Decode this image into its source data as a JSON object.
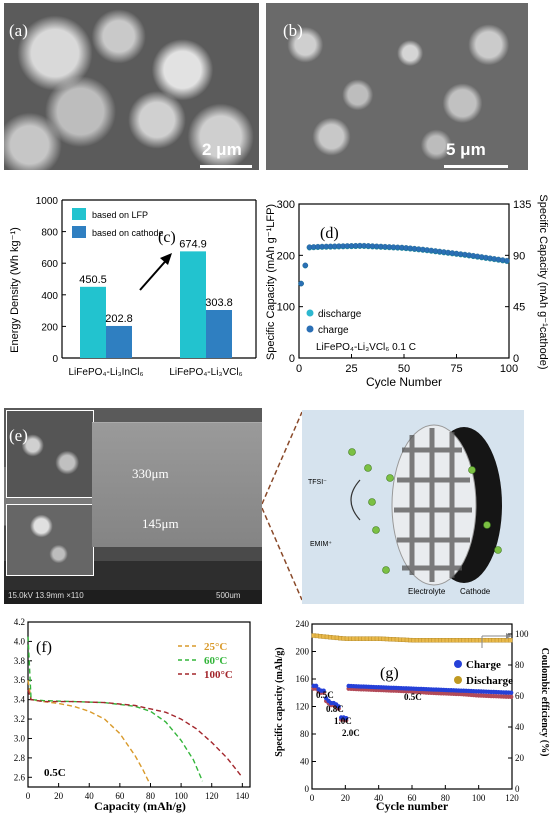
{
  "panel_a": {
    "letter": "(a)",
    "scale": "2 μm"
  },
  "panel_b": {
    "letter": "(b)",
    "scale": "5 μm"
  },
  "panel_c": {
    "letter": "(c)",
    "legend": [
      "based on LFP",
      "based on cathode"
    ],
    "ylabel": "Energy Density (Wh kg⁻¹)",
    "yticks": [
      "0",
      "200",
      "400",
      "600",
      "800",
      "1000"
    ],
    "categories": [
      "LiFePO₄-Li₃InCl₆",
      "LiFePO₄-Li₃VCl₆"
    ],
    "colors": {
      "lfp": "#22c3cf",
      "cathode": "#2f7fc1"
    }
  },
  "panel_d": {
    "letter": "(d)",
    "ylabel_left": "Specific Capacity (mAh g⁻¹LFP)",
    "ylabel_right": "Specific Capacity (mAh g⁻¹cathode)",
    "xlabel": "Cycle Number",
    "yticks_left": [
      "0",
      "100",
      "200",
      "300"
    ],
    "yticks_right": [
      "0",
      "45",
      "90",
      "135"
    ],
    "xticks": [
      "0",
      "25",
      "50",
      "75",
      "100"
    ],
    "legend": [
      "discharge",
      "charge"
    ],
    "annotation": "LiFePO₄-Li₃VCl₆  0.1 C"
  },
  "panel_e": {
    "letter": "(e)",
    "thickness_top": "330μm",
    "thickness_bottom": "145μm",
    "sem_footer": "15.0kV 13.9mm ×110",
    "sem_scale": "500um",
    "schematic": {
      "anion": "TFSI⁻",
      "cation": "EMIM⁺",
      "electrolyte": "Electrolyte",
      "cathode": "Cathode"
    }
  },
  "panel_f": {
    "letter": "(f)",
    "xlabel": "Capacity (mAh/g)",
    "xticks": [
      "0",
      "20",
      "40",
      "60",
      "80",
      "100",
      "120",
      "140"
    ],
    "yticks": [
      "2.6",
      "2.8",
      "3.0",
      "3.2",
      "3.4",
      "3.6",
      "3.8",
      "4.0",
      "4.2"
    ],
    "legend": [
      {
        "name": "25°C",
        "color": "#d99a2b"
      },
      {
        "name": "60°C",
        "color": "#33b53a"
      },
      {
        "name": "100°C",
        "color": "#a3262c"
      }
    ],
    "rate": "0.5C"
  },
  "panel_g": {
    "letter": "(g)",
    "xlabel": "Cycle number",
    "ylabel_left": "Specific capacity (mAh/g)",
    "ylabel_right": "Coulombic efficiency (%)",
    "xticks": [
      "0",
      "20",
      "40",
      "60",
      "80",
      "100",
      "120"
    ],
    "yticks_left": [
      "0",
      "40",
      "80",
      "120",
      "160",
      "200",
      "240"
    ],
    "yticks_right": [
      "0",
      "20",
      "40",
      "60",
      "80",
      "100"
    ],
    "legend": [
      "Charge",
      "Discharge"
    ],
    "rates": [
      "0.5C",
      "0.8C",
      "1.0C",
      "2.0C",
      "0.5C"
    ]
  },
  "chart_data": [
    {
      "type": "bar",
      "categories": [
        "LiFePO₄-Li₃InCl₆",
        "LiFePO₄-Li₃VCl₆"
      ],
      "series": [
        {
          "name": "based on LFP",
          "values": [
            450.5,
            674.9
          ]
        },
        {
          "name": "based on cathode",
          "values": [
            202.8,
            303.8
          ]
        }
      ],
      "ylabel": "Energy Density (Wh kg⁻¹)",
      "ylim": [
        0,
        1000
      ],
      "data_labels": [
        "450.5",
        "202.8",
        "674.9",
        "303.8"
      ]
    },
    {
      "type": "scatter",
      "xlabel": "Cycle Number",
      "ylabel": "Specific Capacity (mAh g⁻¹LFP)",
      "ylabel_right": "Specific Capacity (mAh g⁻¹cathode)",
      "xlim": [
        0,
        100
      ],
      "ylim": [
        0,
        300
      ],
      "ylim_right": [
        0,
        135
      ],
      "series": [
        {
          "name": "discharge",
          "x": [
            1,
            5,
            10,
            20,
            30,
            40,
            50,
            60,
            70,
            80,
            90,
            100
          ],
          "values": [
            145,
            215,
            216,
            217,
            218,
            216,
            214,
            210,
            205,
            200,
            194,
            188
          ]
        },
        {
          "name": "charge",
          "x": [
            1,
            5,
            10,
            20,
            30,
            40,
            50,
            60,
            70,
            80,
            90,
            100
          ],
          "values": [
            145,
            216,
            217,
            218,
            219,
            217,
            215,
            211,
            206,
            201,
            195,
            189
          ]
        }
      ]
    },
    {
      "type": "line",
      "xlabel": "Capacity (mAh/g)",
      "xlim": [
        0,
        145
      ],
      "ylim": [
        2.5,
        4.2
      ],
      "series": [
        {
          "name": "25°C",
          "x": [
            0,
            2,
            10,
            20,
            30,
            40,
            50,
            60,
            70,
            75,
            79
          ],
          "values": [
            3.6,
            3.4,
            3.38,
            3.36,
            3.33,
            3.28,
            3.2,
            3.05,
            2.82,
            2.68,
            2.55
          ]
        },
        {
          "name": "60°C",
          "x": [
            0,
            2,
            10,
            30,
            50,
            70,
            80,
            90,
            100,
            108,
            114
          ],
          "values": [
            4.05,
            3.4,
            3.39,
            3.38,
            3.37,
            3.33,
            3.28,
            3.17,
            2.98,
            2.78,
            2.56
          ]
        },
        {
          "name": "100°C",
          "x": [
            0,
            2,
            10,
            30,
            50,
            70,
            90,
            100,
            110,
            120,
            130,
            140
          ],
          "values": [
            3.5,
            3.4,
            3.38,
            3.38,
            3.37,
            3.34,
            3.27,
            3.2,
            3.1,
            2.96,
            2.8,
            2.6
          ]
        }
      ]
    },
    {
      "type": "scatter",
      "xlabel": "Cycle number",
      "ylabel": "Specific capacity (mAh/g)",
      "ylabel_right": "Coulombic efficiency (%)",
      "xlim": [
        0,
        120
      ],
      "ylim": [
        0,
        240
      ],
      "ylim_right": [
        0,
        100
      ],
      "series": [
        {
          "name": "Charge",
          "x": [
            1,
            3,
            5,
            7,
            9,
            11,
            13,
            15,
            17,
            19,
            21,
            30,
            40,
            50,
            60,
            70,
            80,
            90,
            100,
            110,
            120
          ],
          "values": [
            150,
            145,
            143,
            132,
            128,
            125,
            123,
            120,
            104,
            103,
            150,
            149,
            148,
            147,
            146,
            145,
            144,
            143,
            142,
            141,
            140
          ]
        },
        {
          "name": "Discharge",
          "x": [
            1,
            3,
            5,
            7,
            9,
            11,
            13,
            15,
            17,
            19,
            21,
            30,
            40,
            50,
            60,
            70,
            80,
            90,
            100,
            110,
            120
          ],
          "values": [
            146,
            142,
            140,
            128,
            125,
            122,
            120,
            117,
            101,
            100,
            146,
            145,
            144,
            143,
            142,
            140,
            139,
            138,
            136,
            135,
            134
          ]
        },
        {
          "name": "Coulombic efficiency",
          "x": [
            1,
            10,
            20,
            40,
            60,
            80,
            100,
            120
          ],
          "values": [
            99,
            98,
            97,
            97,
            96,
            96,
            96,
            96
          ]
        }
      ]
    }
  ]
}
